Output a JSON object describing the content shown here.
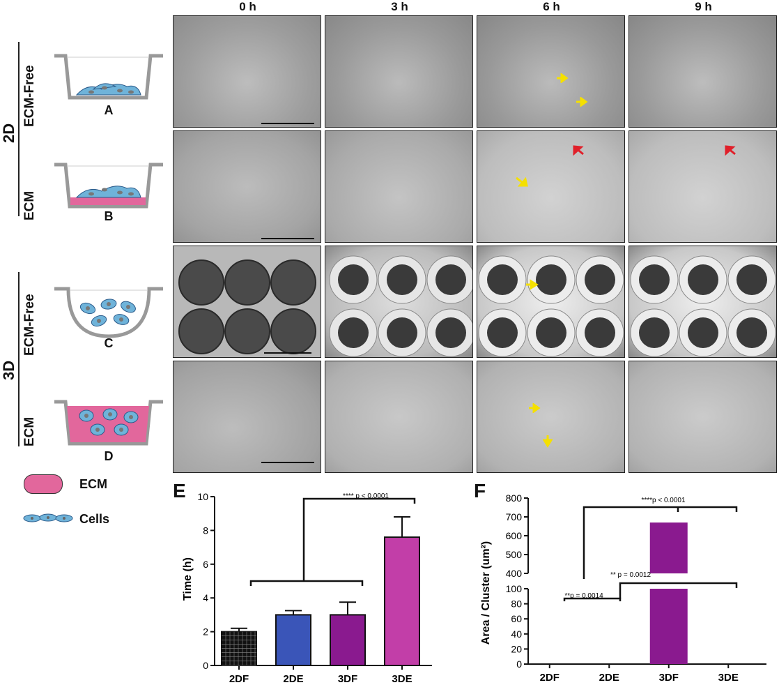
{
  "columns": [
    "0 h",
    "3 h",
    "6 h",
    "9 h"
  ],
  "groups": {
    "top": "2D",
    "bottom": "3D"
  },
  "rows": [
    {
      "label": "ECM-Free",
      "letter": "A"
    },
    {
      "label": "ECM",
      "letter": "B"
    },
    {
      "label": "ECM-Free",
      "letter": "C"
    },
    {
      "label": "ECM",
      "letter": "D"
    }
  ],
  "legend": {
    "ecm": "ECM",
    "cells": "Cells"
  },
  "colors": {
    "ecm_pink": "#e2679c",
    "cell_blue": "#6fb3d9",
    "arrow_yellow": "#f5e000",
    "arrow_red": "#e0202a"
  },
  "panel_E": {
    "label": "E",
    "significance": "**** p < 0.0001"
  },
  "panel_F": {
    "label": "F",
    "sig_top": "****p < 0.0001",
    "sig_mid": "** p = 0.0012",
    "sig_low": "**p = 0.0014"
  },
  "chart_data": [
    {
      "type": "bar",
      "title": "",
      "ylabel": "Time (h)",
      "xlabel": "",
      "categories": [
        "2DF",
        "2DE",
        "3DF",
        "3DE"
      ],
      "values": [
        2.0,
        3.0,
        3.0,
        7.6
      ],
      "errors": [
        0.2,
        0.25,
        0.75,
        1.2
      ],
      "colors": [
        "#111111",
        "#3a55b8",
        "#8a1a8f",
        "#c23ea8"
      ],
      "ylim": [
        0,
        10
      ],
      "yticks": [
        0,
        2,
        4,
        6,
        8,
        10
      ]
    },
    {
      "type": "bar",
      "title": "",
      "ylabel": "Area / Cluster (um²)",
      "xlabel": "",
      "categories": [
        "2DF",
        "2DE",
        "3DF",
        "3DE"
      ],
      "values": [
        0,
        0,
        670,
        0
      ],
      "colors": [
        "#8a1a8f",
        "#8a1a8f",
        "#8a1a8f",
        "#8a1a8f"
      ],
      "axis_break": {
        "lower": [
          0,
          100
        ],
        "upper": [
          400,
          800
        ]
      },
      "yticks_lower": [
        0,
        20,
        40,
        60,
        80,
        100
      ],
      "yticks_upper": [
        400,
        500,
        600,
        700,
        800
      ]
    }
  ]
}
